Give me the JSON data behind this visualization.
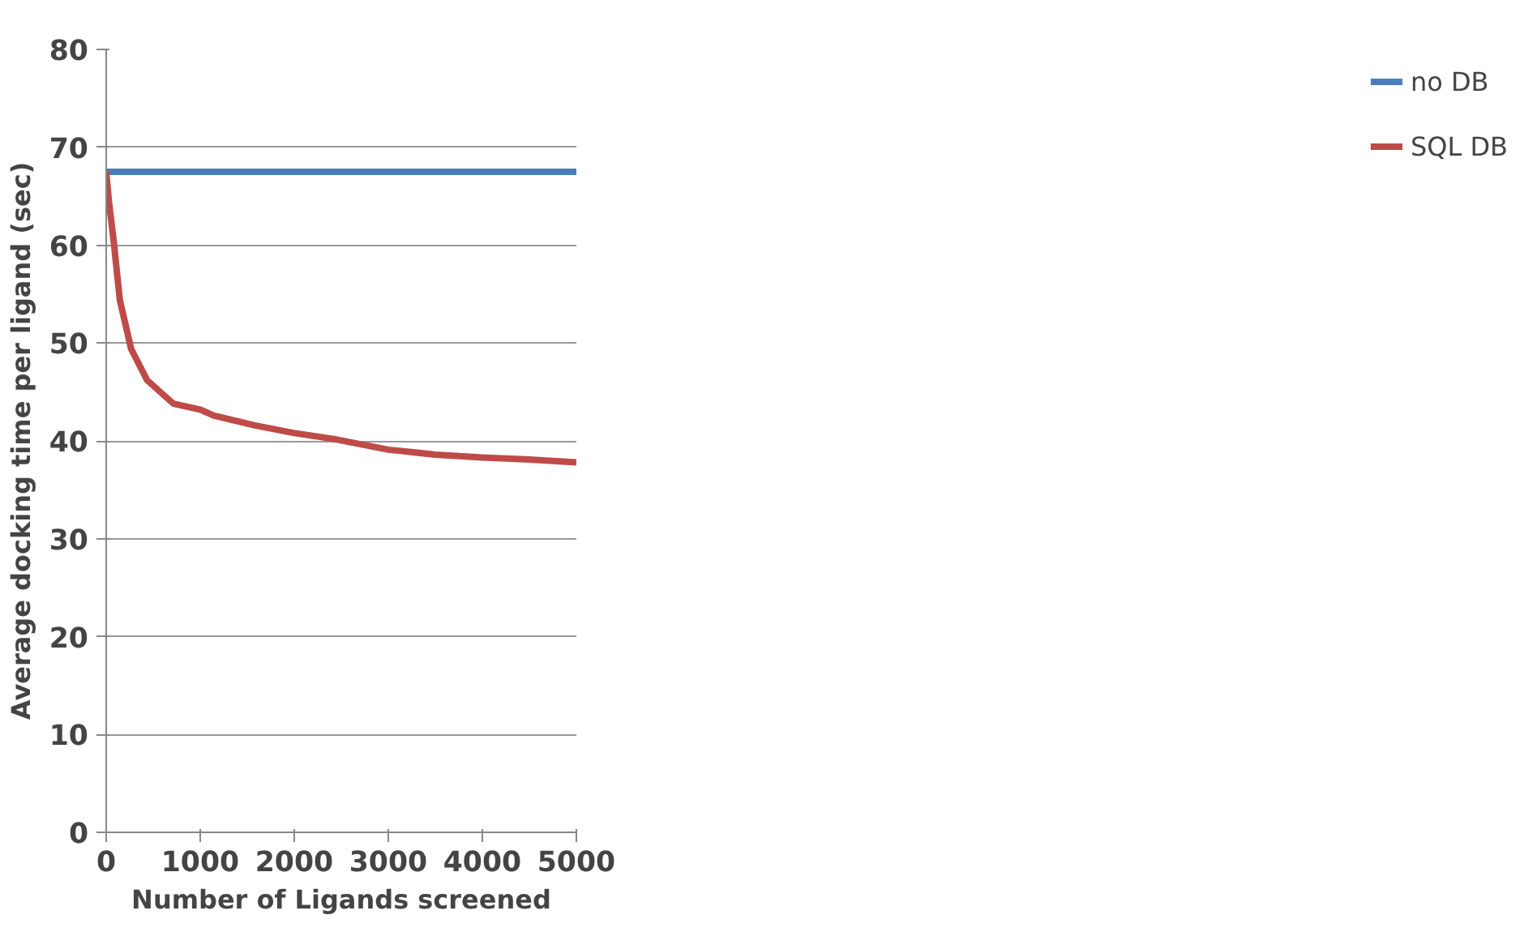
{
  "chart_data": {
    "type": "line",
    "xlabel": "Number of Ligands screened",
    "ylabel": "Average docking time per ligand (sec)",
    "xlim": [
      0,
      5000
    ],
    "xticks": [
      0,
      1000,
      2000,
      3000,
      4000,
      5000
    ],
    "ylim": [
      0,
      80
    ],
    "yticks": [
      0,
      10,
      20,
      30,
      40,
      50,
      60,
      70,
      80
    ],
    "grid": "y",
    "legend": "right",
    "series": [
      {
        "name": "no DB",
        "color": "#4a7ebb",
        "x": [
          0,
          5000
        ],
        "values": [
          67.5,
          67.5
        ]
      },
      {
        "name": "SQL DB",
        "color": "#be4b48",
        "x": [
          0,
          30,
          80,
          145,
          265,
          435,
          715,
          1000,
          1140,
          1570,
          2000,
          2420,
          3000,
          3500,
          4000,
          4500,
          5000
        ],
        "values": [
          67.5,
          64.4,
          60.4,
          54.4,
          49.4,
          46.2,
          43.8,
          43.2,
          42.6,
          41.6,
          40.8,
          40.2,
          39.1,
          38.6,
          38.3,
          38.1,
          37.8
        ]
      }
    ]
  }
}
